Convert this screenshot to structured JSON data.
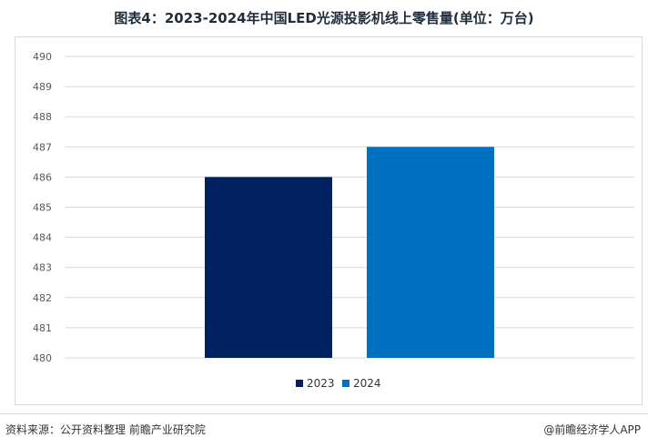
{
  "chart_data": {
    "type": "bar",
    "title": "图表4：2023-2024年中国LED光源投影机线上零售量(单位：万台)",
    "categories": [
      "2023",
      "2024"
    ],
    "series": [
      {
        "name": "2023",
        "values": [
          486,
          null
        ],
        "color": "#002060"
      },
      {
        "name": "2024",
        "values": [
          null,
          487
        ],
        "color": "#0070C0"
      }
    ],
    "ylim": [
      480,
      490
    ],
    "yticks": [
      480,
      481,
      482,
      483,
      484,
      485,
      486,
      487,
      488,
      489,
      490
    ],
    "grid": true,
    "legend_position": "bottom"
  },
  "footer": {
    "source": "资料来源：公开资料整理 前瞻产业研究院",
    "credit": "@前瞻经济学人APP"
  }
}
